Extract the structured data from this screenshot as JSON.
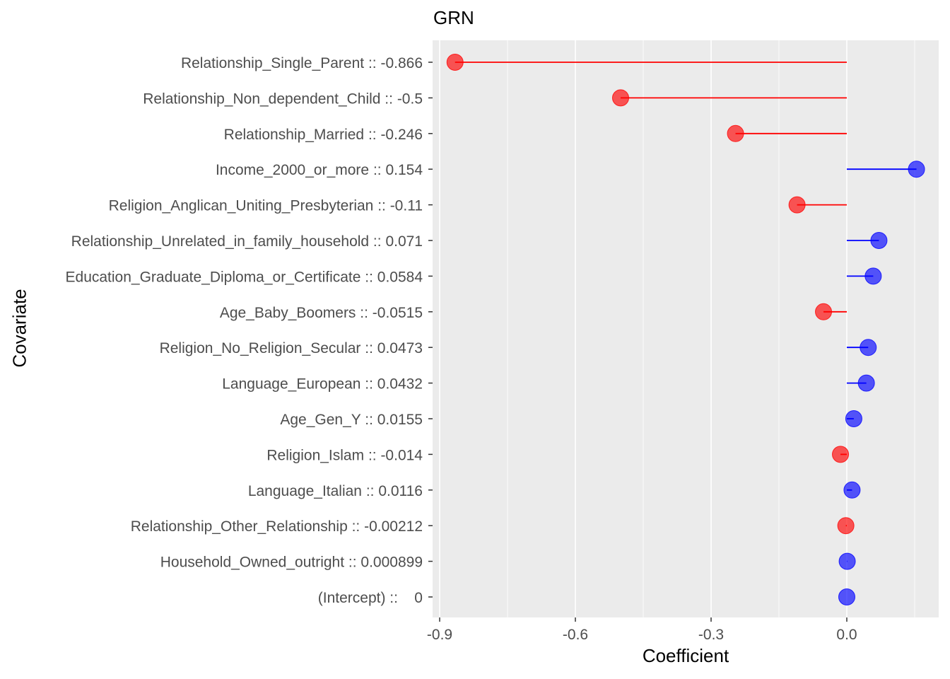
{
  "chart_data": {
    "type": "lollipop",
    "title": "GRN",
    "xlabel": "Coefficient",
    "ylabel": "Covariate",
    "xlim": [
      -0.9,
      0.154
    ],
    "x_ticks": [
      -0.9,
      -0.6,
      -0.3,
      0.0
    ],
    "x_tick_labels": [
      "-0.9",
      "-0.6",
      "-0.3",
      "0.0"
    ],
    "grid": true,
    "colors": {
      "negative": "#ff0000",
      "positive": "#0000ff",
      "panel": "#ebebeb",
      "grid": "#ffffff"
    },
    "categories": [
      "Relationship_Single_Parent :: -0.866",
      "Relationship_Non_dependent_Child :: -0.5",
      "Relationship_Married :: -0.246",
      "Income_2000_or_more :: 0.154",
      "Religion_Anglican_Uniting_Presbyterian :: -0.11",
      "Relationship_Unrelated_in_family_household :: 0.071",
      "Education_Graduate_Diploma_or_Certificate :: 0.0584",
      "Age_Baby_Boomers :: -0.0515",
      "Religion_No_Religion_Secular :: 0.0473",
      "Language_European :: 0.0432",
      "Age_Gen_Y :: 0.0155",
      "Religion_Islam :: -0.014",
      "Language_Italian :: 0.0116",
      "Relationship_Other_Relationship :: -0.00212",
      "Household_Owned_outright :: 0.000899",
      "(Intercept) ::    0"
    ],
    "values": [
      -0.866,
      -0.5,
      -0.246,
      0.154,
      -0.11,
      0.071,
      0.0584,
      -0.0515,
      0.0473,
      0.0432,
      0.0155,
      -0.014,
      0.0116,
      -0.00212,
      0.000899,
      0
    ]
  }
}
